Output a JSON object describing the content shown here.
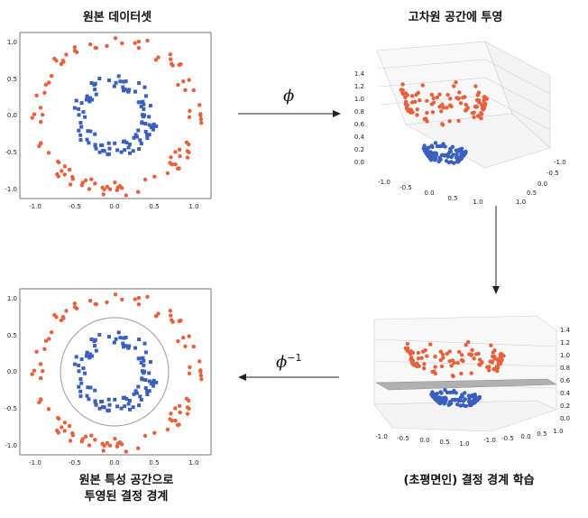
{
  "titles": {
    "top_left": "원본 데이터셋",
    "top_right": "고차원 공간에 투영",
    "bottom_right": "(초평면인) 결정 경계 학습",
    "bottom_left_line1": "원본 특성 공간으로",
    "bottom_left_line2": "투영된 결정 경계"
  },
  "arrows": {
    "forward_label": "ϕ",
    "inverse_label": "ϕ",
    "inverse_exponent": "−1"
  },
  "colors": {
    "outer_class": "#e8603c",
    "inner_class": "#3a5fbf",
    "boundary": "#aaaaaa",
    "plane": "#9a9a9a"
  },
  "chart_data": [
    {
      "type": "scatter",
      "panel": "original-dataset",
      "xlim": [
        -1.1,
        1.1
      ],
      "ylim": [
        -1.1,
        1.1
      ],
      "xticks": [
        "-1.0",
        "-0.5",
        "0.0",
        "0.5",
        "1.0"
      ],
      "yticks": [
        "1.0",
        "0.5",
        "0.0",
        "-0.5",
        "-1.0"
      ],
      "series": [
        {
          "marker": "circle",
          "shape": "ring",
          "radius": 1.0,
          "count": 100
        },
        {
          "marker": "square",
          "shape": "ring",
          "radius": 0.45,
          "count": 100
        }
      ]
    },
    {
      "type": "scatter",
      "panel": "projected-3d",
      "zticks": [
        "1.4",
        "1.2",
        "1.0",
        "0.8",
        "0.6",
        "0.4",
        "0.2",
        "0.0"
      ],
      "xticks": [
        "-1.0",
        "-0.5",
        "0.0",
        "0.5",
        "1.0"
      ],
      "yticks": [
        "-1.0",
        "-0.5",
        "0.0",
        "0.5",
        "1.0"
      ]
    },
    {
      "type": "scatter",
      "panel": "hyperplane-3d",
      "plane_z": 0.6,
      "zticks": [
        "1.4",
        "1.2",
        "1.0",
        "0.8",
        "0.6",
        "0.4",
        "0.2",
        "0.0"
      ],
      "xticks": [
        "-1.0",
        "-0.5",
        "0.0",
        "0.5",
        "1.0"
      ],
      "yticks": [
        "-1.0",
        "-0.5",
        "0.0",
        "0.5",
        "1.0"
      ]
    },
    {
      "type": "scatter",
      "panel": "projected-boundary",
      "xticks": [
        "-1.0",
        "-0.5",
        "0.0",
        "0.5",
        "1.0"
      ],
      "yticks": [
        "1.0",
        "0.5",
        "0.0",
        "-0.5",
        "-1.0"
      ],
      "boundary_radius": 0.7
    }
  ]
}
